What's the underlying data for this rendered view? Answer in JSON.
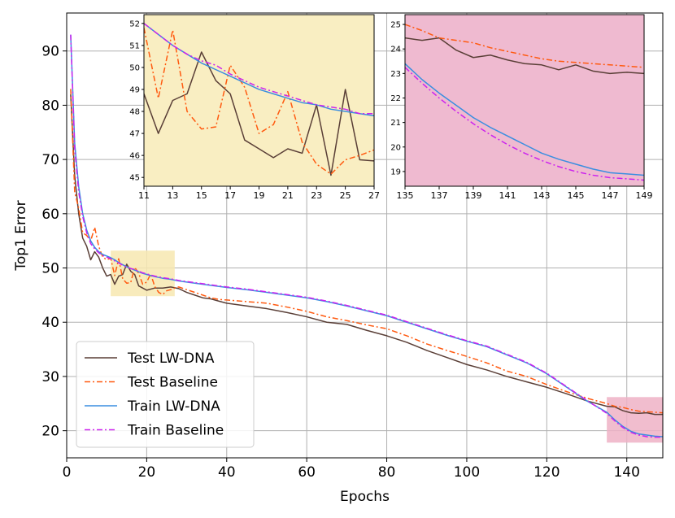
{
  "chart_data": [
    {
      "id": "main",
      "type": "line",
      "title": "",
      "xlabel": "Epochs",
      "ylabel": "Top1 Error",
      "xlim": [
        0,
        149
      ],
      "ylim": [
        15,
        97
      ],
      "xticks": [
        0,
        20,
        40,
        60,
        80,
        100,
        120,
        140
      ],
      "yticks": [
        20,
        30,
        40,
        50,
        60,
        70,
        80,
        90
      ],
      "grid": true,
      "legend_position": "lower-left",
      "series": [
        {
          "name": "Test LW-DNA",
          "color": "#5a3f37",
          "dash": "solid",
          "x": [
            1,
            2,
            3,
            4,
            5,
            6,
            7,
            8,
            9,
            10,
            11,
            12,
            13,
            14,
            15,
            16,
            17,
            18,
            19,
            20,
            22,
            24,
            26,
            28,
            30,
            32,
            34,
            36,
            38,
            40,
            45,
            50,
            55,
            60,
            65,
            70,
            75,
            80,
            85,
            90,
            95,
            100,
            105,
            110,
            115,
            120,
            125,
            130,
            135,
            137,
            139,
            141,
            143,
            145,
            147,
            149
          ],
          "values": [
            82,
            67,
            60,
            55.5,
            54,
            51.5,
            53,
            52,
            50,
            48.5,
            48.8,
            47,
            48.5,
            48.8,
            50.7,
            49.4,
            48.8,
            46.7,
            46.3,
            45.9,
            46.3,
            46.3,
            46.5,
            46.2,
            45.5,
            45,
            44.5,
            44.3,
            43.9,
            43.5,
            43,
            42.5,
            41.8,
            41,
            40,
            39.6,
            38.5,
            37.5,
            36.3,
            34.8,
            33.5,
            32.2,
            31.2,
            30,
            29,
            28,
            26.8,
            25.5,
            24.5,
            24.4,
            23.7,
            23.3,
            23.2,
            23.3,
            23.0,
            23.0
          ]
        },
        {
          "name": "Test Baseline",
          "color": "#ff5a10",
          "dash": "dashdot",
          "x": [
            1,
            2,
            3,
            4,
            5,
            6,
            7,
            8,
            9,
            10,
            11,
            12,
            13,
            14,
            15,
            16,
            17,
            18,
            19,
            20,
            21,
            22,
            23,
            24,
            25,
            26,
            27,
            28,
            30,
            32,
            34,
            36,
            38,
            40,
            45,
            50,
            55,
            60,
            65,
            70,
            75,
            80,
            85,
            90,
            95,
            100,
            105,
            110,
            115,
            120,
            125,
            130,
            135,
            137,
            139,
            141,
            143,
            145,
            147,
            149
          ],
          "values": [
            83,
            64,
            61,
            56.5,
            56,
            55,
            57.5,
            54,
            52,
            51.5,
            51.8,
            48.6,
            51.7,
            48,
            47.2,
            47.3,
            50.1,
            49,
            47,
            47.4,
            48.9,
            46.6,
            45.5,
            45.1,
            45.8,
            46,
            46.3,
            46.5,
            46,
            45.5,
            45,
            44.5,
            44.2,
            44.1,
            43.8,
            43.5,
            42.8,
            42,
            41,
            40.3,
            39.5,
            38.8,
            37.5,
            36,
            34.8,
            33.7,
            32.5,
            31,
            30,
            28.5,
            27.2,
            26,
            25,
            24.5,
            24.3,
            23.9,
            23.6,
            23.5,
            23.4,
            23.3
          ]
        },
        {
          "name": "Train LW-DNA",
          "color": "#3a8ee0",
          "dash": "solid",
          "x": [
            1,
            2,
            3,
            4,
            5,
            6,
            7,
            8,
            9,
            10,
            11,
            12,
            13,
            14,
            15,
            16,
            17,
            18,
            19,
            20,
            22,
            24,
            26,
            28,
            30,
            35,
            40,
            45,
            50,
            55,
            60,
            65,
            70,
            75,
            80,
            85,
            90,
            95,
            100,
            105,
            110,
            115,
            120,
            125,
            130,
            135,
            137,
            139,
            141,
            143,
            145,
            147,
            149
          ],
          "values": [
            93,
            73,
            65,
            60,
            57,
            55,
            53.8,
            53,
            52.5,
            52.2,
            51.9,
            51.5,
            51.0,
            50.6,
            50.2,
            49.9,
            49.6,
            49.3,
            49.0,
            48.8,
            48.4,
            48.1,
            47.9,
            47.6,
            47.4,
            46.9,
            46.4,
            46.0,
            45.5,
            45.0,
            44.5,
            43.8,
            43.0,
            42.1,
            41.2,
            40.0,
            38.8,
            37.6,
            36.5,
            35.5,
            34.0,
            32.5,
            30.5,
            28.0,
            25.5,
            23.4,
            22.0,
            20.8,
            19.9,
            19.4,
            19.2,
            19.0,
            18.9
          ]
        },
        {
          "name": "Train Baseline",
          "color": "#cc22ee",
          "dash": "dashdot",
          "x": [
            1,
            2,
            3,
            4,
            5,
            6,
            7,
            8,
            9,
            10,
            11,
            12,
            13,
            14,
            15,
            16,
            17,
            18,
            19,
            20,
            22,
            24,
            26,
            28,
            30,
            35,
            40,
            45,
            50,
            55,
            60,
            65,
            70,
            75,
            80,
            85,
            90,
            95,
            100,
            105,
            110,
            115,
            120,
            125,
            130,
            135,
            137,
            139,
            141,
            143,
            145,
            147,
            149
          ],
          "values": [
            93,
            72,
            64,
            59.5,
            56.5,
            54.5,
            53.5,
            52.8,
            52.3,
            52.0,
            51.7,
            51.3,
            50.9,
            50.5,
            50.2,
            49.9,
            49.7,
            49.4,
            49.1,
            48.9,
            48.5,
            48.2,
            48.0,
            47.7,
            47.5,
            47.0,
            46.5,
            46.1,
            45.6,
            45.1,
            44.6,
            43.9,
            43.1,
            42.2,
            41.3,
            40.1,
            38.9,
            37.7,
            36.6,
            35.6,
            34.1,
            32.6,
            30.6,
            28.1,
            25.6,
            23.2,
            21.8,
            20.6,
            19.7,
            19.2,
            18.9,
            18.8,
            18.8
          ]
        }
      ],
      "highlights": [
        {
          "x": [
            11,
            27
          ],
          "y": [
            44.8,
            53.2
          ],
          "color": "#f7e7b0"
        },
        {
          "x": [
            135,
            149
          ],
          "y": [
            17.8,
            26.2
          ],
          "color": "#efb1c5"
        }
      ]
    },
    {
      "id": "inset1",
      "type": "line",
      "xlim": [
        11,
        27
      ],
      "ylim": [
        44.6,
        52.4
      ],
      "xticks": [
        11,
        13,
        15,
        17,
        19,
        21,
        23,
        25,
        27
      ],
      "yticks": [
        45,
        46,
        47,
        48,
        49,
        50,
        51,
        52
      ],
      "background": "#f9eec2",
      "series": [
        {
          "name": "Test LW-DNA",
          "x": [
            11,
            12,
            13,
            14,
            15,
            16,
            17,
            18,
            19,
            20,
            21,
            22,
            23,
            24,
            25,
            26,
            27
          ],
          "values": [
            48.8,
            47.0,
            48.5,
            48.8,
            50.7,
            49.4,
            48.8,
            46.7,
            46.3,
            45.9,
            46.3,
            46.1,
            48.3,
            45.1,
            49.0,
            45.8,
            45.75
          ]
        },
        {
          "name": "Test Baseline",
          "x": [
            11,
            12,
            13,
            14,
            15,
            16,
            17,
            18,
            19,
            20,
            21,
            22,
            23,
            24,
            25,
            26,
            27
          ],
          "values": [
            51.8,
            48.6,
            51.7,
            48.0,
            47.2,
            47.3,
            50.1,
            49.1,
            47.0,
            47.4,
            48.9,
            46.6,
            45.6,
            45.15,
            45.8,
            46.0,
            46.25
          ]
        },
        {
          "name": "Train LW-DNA",
          "x": [
            11,
            12,
            13,
            14,
            15,
            16,
            17,
            18,
            19,
            20,
            21,
            22,
            23,
            24,
            25,
            26,
            27
          ],
          "values": [
            52.0,
            51.5,
            51.0,
            50.6,
            50.2,
            49.9,
            49.6,
            49.3,
            49.0,
            48.8,
            48.6,
            48.4,
            48.3,
            48.1,
            48.0,
            47.9,
            47.8
          ]
        },
        {
          "name": "Train Baseline",
          "x": [
            11,
            12,
            13,
            14,
            15,
            16,
            17,
            18,
            19,
            20,
            21,
            22,
            23,
            24,
            25,
            26,
            27
          ],
          "values": [
            52.0,
            51.5,
            51.0,
            50.6,
            50.3,
            50.1,
            49.7,
            49.4,
            49.1,
            48.9,
            48.7,
            48.5,
            48.3,
            48.2,
            48.1,
            47.9,
            47.9
          ]
        }
      ]
    },
    {
      "id": "inset2",
      "type": "line",
      "xlim": [
        135,
        149
      ],
      "ylim": [
        18.4,
        25.4
      ],
      "xticks": [
        135,
        137,
        139,
        141,
        143,
        145,
        147,
        149
      ],
      "yticks": [
        19,
        20,
        21,
        22,
        23,
        24,
        25
      ],
      "background": "#efbad0",
      "series": [
        {
          "name": "Test LW-DNA",
          "x": [
            135,
            136,
            137,
            138,
            139,
            140,
            141,
            142,
            143,
            144,
            145,
            146,
            147,
            148,
            149
          ],
          "values": [
            24.45,
            24.35,
            24.45,
            23.95,
            23.65,
            23.75,
            23.55,
            23.4,
            23.35,
            23.15,
            23.35,
            23.1,
            23.0,
            23.05,
            23.0
          ]
        },
        {
          "name": "Test Baseline",
          "x": [
            135,
            136,
            137,
            138,
            139,
            140,
            141,
            142,
            143,
            144,
            145,
            146,
            147,
            148,
            149
          ],
          "values": [
            25.0,
            24.75,
            24.45,
            24.35,
            24.25,
            24.05,
            23.9,
            23.75,
            23.6,
            23.5,
            23.45,
            23.4,
            23.35,
            23.3,
            23.25
          ]
        },
        {
          "name": "Train LW-DNA",
          "x": [
            135,
            136,
            137,
            138,
            139,
            140,
            141,
            142,
            143,
            144,
            145,
            146,
            147,
            148,
            149
          ],
          "values": [
            23.4,
            22.75,
            22.2,
            21.7,
            21.2,
            20.8,
            20.45,
            20.1,
            19.75,
            19.5,
            19.3,
            19.1,
            18.95,
            18.9,
            18.85
          ]
        },
        {
          "name": "Train Baseline",
          "x": [
            135,
            136,
            137,
            138,
            139,
            140,
            141,
            142,
            143,
            144,
            145,
            146,
            147,
            148,
            149
          ],
          "values": [
            23.25,
            22.6,
            22.0,
            21.45,
            20.95,
            20.5,
            20.1,
            19.75,
            19.45,
            19.2,
            19.0,
            18.85,
            18.75,
            18.7,
            18.65
          ]
        }
      ]
    }
  ]
}
